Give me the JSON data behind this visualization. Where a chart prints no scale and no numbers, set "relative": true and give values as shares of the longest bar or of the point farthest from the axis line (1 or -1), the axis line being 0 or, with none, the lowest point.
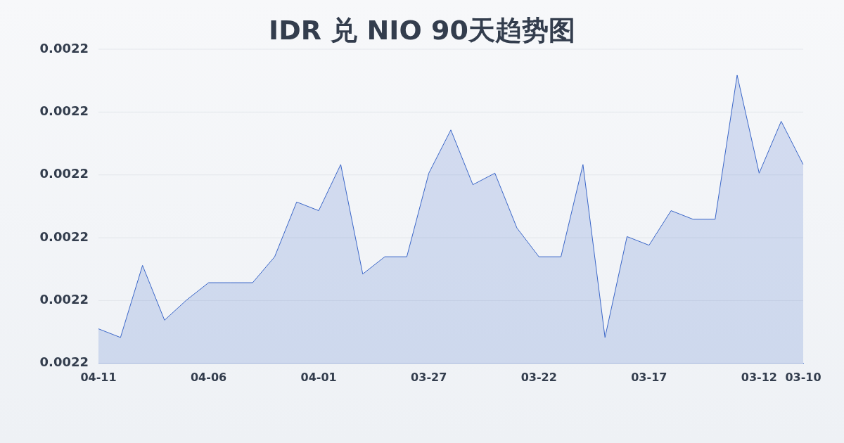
{
  "chart_data": {
    "type": "area",
    "title": "IDR 兑 NIO 90天趋势图",
    "categories": [
      "04-11",
      null,
      null,
      null,
      null,
      "04-06",
      null,
      null,
      null,
      null,
      "04-01",
      null,
      null,
      null,
      null,
      "03-27",
      null,
      null,
      null,
      null,
      "03-22",
      null,
      null,
      null,
      null,
      "03-17",
      null,
      null,
      null,
      null,
      "03-12",
      null,
      "03-10"
    ],
    "series": [
      {
        "color": "#3a66c8",
        "values": [
          0.12,
          0.09,
          0.34,
          0.15,
          0.22,
          0.28,
          0.28,
          0.28,
          0.37,
          0.56,
          0.53,
          0.69,
          0.31,
          0.37,
          0.37,
          0.66,
          0.81,
          0.62,
          0.66,
          0.47,
          0.37,
          0.37,
          0.69,
          0.09,
          0.44,
          0.41,
          0.53,
          0.5,
          0.5,
          1,
          0.66,
          0.84,
          0.69
        ]
      }
    ],
    "relative": true,
    "annotations": [
      "0.0022",
      "0.0022",
      "0.0022",
      "0.0022",
      "0.0022",
      "0.0022"
    ],
    "grid": "y",
    "legend": false,
    "marker": "none",
    "line_style": "solid"
  }
}
